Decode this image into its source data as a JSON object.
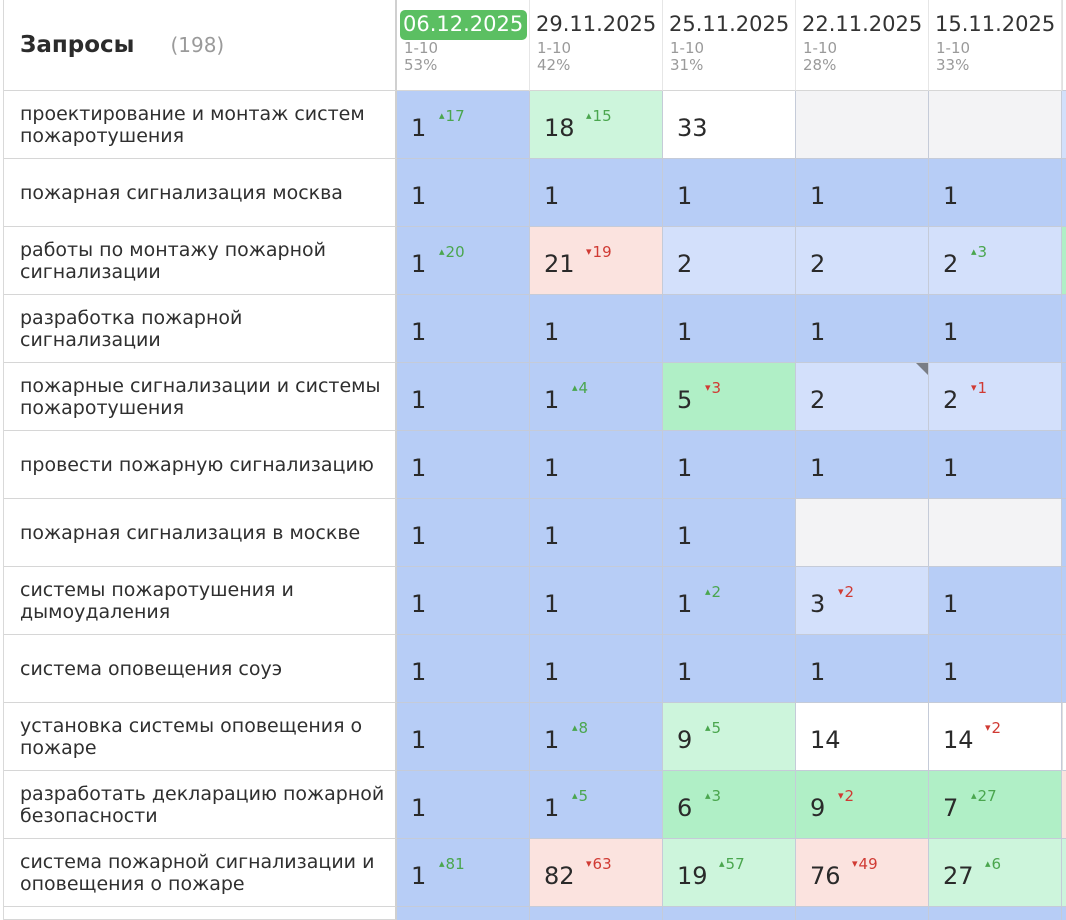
{
  "header": {
    "title": "Запросы",
    "count": "(198)",
    "dates": [
      {
        "date": "06.12.2025",
        "range": "1-10",
        "percent": "53%",
        "current": true
      },
      {
        "date": "29.11.2025",
        "range": "1-10",
        "percent": "42%",
        "current": false
      },
      {
        "date": "25.11.2025",
        "range": "1-10",
        "percent": "31%",
        "current": false
      },
      {
        "date": "22.11.2025",
        "range": "1-10",
        "percent": "28%",
        "current": false
      },
      {
        "date": "15.11.2025",
        "range": "1-10",
        "percent": "33%",
        "current": false
      }
    ]
  },
  "colors": {
    "current_date_badge": "#5bbf62",
    "top_position": "#b7cdf6",
    "near_top": "#d3e0fb",
    "light_green": "#cdf5dc",
    "green": "#b0efc6",
    "drop": "#fbe3df",
    "delta_up": "#4aa64e",
    "delta_down": "#d03a33"
  },
  "rows": [
    {
      "query": "проектирование и монтаж систем пожаротушения",
      "cells": [
        {
          "pos": "1",
          "delta": "17",
          "dir": "up",
          "color": "blue"
        },
        {
          "pos": "18",
          "delta": "15",
          "dir": "up",
          "color": "lgreen"
        },
        {
          "pos": "33",
          "delta": "",
          "dir": "",
          "color": "white"
        },
        {
          "pos": "",
          "delta": "",
          "dir": "",
          "color": "gray"
        },
        {
          "pos": "",
          "delta": "",
          "dir": "",
          "color": "gray"
        }
      ],
      "strip": "lblue"
    },
    {
      "query": "пожарная сигнализация москва",
      "cells": [
        {
          "pos": "1",
          "delta": "",
          "dir": "",
          "color": "blue"
        },
        {
          "pos": "1",
          "delta": "",
          "dir": "",
          "color": "blue"
        },
        {
          "pos": "1",
          "delta": "",
          "dir": "",
          "color": "blue"
        },
        {
          "pos": "1",
          "delta": "",
          "dir": "",
          "color": "blue"
        },
        {
          "pos": "1",
          "delta": "",
          "dir": "",
          "color": "blue"
        }
      ],
      "strip": "blue"
    },
    {
      "query": "работы по монтажу пожарной сигнализации",
      "cells": [
        {
          "pos": "1",
          "delta": "20",
          "dir": "up",
          "color": "blue"
        },
        {
          "pos": "21",
          "delta": "19",
          "dir": "down",
          "color": "pink"
        },
        {
          "pos": "2",
          "delta": "",
          "dir": "",
          "color": "lblue"
        },
        {
          "pos": "2",
          "delta": "",
          "dir": "",
          "color": "lblue"
        },
        {
          "pos": "2",
          "delta": "3",
          "dir": "up",
          "color": "lblue"
        }
      ],
      "strip": "green"
    },
    {
      "query": "разработка пожарной сигнализации",
      "cells": [
        {
          "pos": "1",
          "delta": "",
          "dir": "",
          "color": "blue"
        },
        {
          "pos": "1",
          "delta": "",
          "dir": "",
          "color": "blue"
        },
        {
          "pos": "1",
          "delta": "",
          "dir": "",
          "color": "blue"
        },
        {
          "pos": "1",
          "delta": "",
          "dir": "",
          "color": "blue"
        },
        {
          "pos": "1",
          "delta": "",
          "dir": "",
          "color": "blue"
        }
      ],
      "strip": "blue"
    },
    {
      "query": "пожарные сигнализации и системы пожаротушения",
      "cells": [
        {
          "pos": "1",
          "delta": "",
          "dir": "",
          "color": "blue"
        },
        {
          "pos": "1",
          "delta": "4",
          "dir": "up",
          "color": "blue"
        },
        {
          "pos": "5",
          "delta": "3",
          "dir": "down",
          "color": "green"
        },
        {
          "pos": "2",
          "delta": "",
          "dir": "",
          "color": "lblue",
          "marker": true
        },
        {
          "pos": "2",
          "delta": "1",
          "dir": "down",
          "color": "lblue"
        }
      ],
      "strip": "blue"
    },
    {
      "query": "провести пожарную сигнализацию",
      "cells": [
        {
          "pos": "1",
          "delta": "",
          "dir": "",
          "color": "blue"
        },
        {
          "pos": "1",
          "delta": "",
          "dir": "",
          "color": "blue"
        },
        {
          "pos": "1",
          "delta": "",
          "dir": "",
          "color": "blue"
        },
        {
          "pos": "1",
          "delta": "",
          "dir": "",
          "color": "blue"
        },
        {
          "pos": "1",
          "delta": "",
          "dir": "",
          "color": "blue"
        }
      ],
      "strip": "blue"
    },
    {
      "query": "пожарная сигнализация в москве",
      "cells": [
        {
          "pos": "1",
          "delta": "",
          "dir": "",
          "color": "blue"
        },
        {
          "pos": "1",
          "delta": "",
          "dir": "",
          "color": "blue"
        },
        {
          "pos": "1",
          "delta": "",
          "dir": "",
          "color": "blue"
        },
        {
          "pos": "",
          "delta": "",
          "dir": "",
          "color": "gray"
        },
        {
          "pos": "",
          "delta": "",
          "dir": "",
          "color": "gray"
        }
      ],
      "strip": "blue"
    },
    {
      "query": "системы пожаротушения и дымоудаления",
      "cells": [
        {
          "pos": "1",
          "delta": "",
          "dir": "",
          "color": "blue"
        },
        {
          "pos": "1",
          "delta": "",
          "dir": "",
          "color": "blue"
        },
        {
          "pos": "1",
          "delta": "2",
          "dir": "up",
          "color": "blue"
        },
        {
          "pos": "3",
          "delta": "2",
          "dir": "down",
          "color": "lblue"
        },
        {
          "pos": "1",
          "delta": "",
          "dir": "",
          "color": "blue"
        }
      ],
      "strip": "blue"
    },
    {
      "query": "система оповещения соуэ",
      "cells": [
        {
          "pos": "1",
          "delta": "",
          "dir": "",
          "color": "blue"
        },
        {
          "pos": "1",
          "delta": "",
          "dir": "",
          "color": "blue"
        },
        {
          "pos": "1",
          "delta": "",
          "dir": "",
          "color": "blue"
        },
        {
          "pos": "1",
          "delta": "",
          "dir": "",
          "color": "blue"
        },
        {
          "pos": "1",
          "delta": "",
          "dir": "",
          "color": "blue"
        }
      ],
      "strip": "blue"
    },
    {
      "query": "установка системы оповещения о пожаре",
      "cells": [
        {
          "pos": "1",
          "delta": "",
          "dir": "",
          "color": "blue"
        },
        {
          "pos": "1",
          "delta": "8",
          "dir": "up",
          "color": "blue"
        },
        {
          "pos": "9",
          "delta": "5",
          "dir": "up",
          "color": "lgreen"
        },
        {
          "pos": "14",
          "delta": "",
          "dir": "",
          "color": "white"
        },
        {
          "pos": "14",
          "delta": "2",
          "dir": "down",
          "color": "white"
        }
      ],
      "strip": "white"
    },
    {
      "query": "разработать декларацию пожарной безопасности",
      "cells": [
        {
          "pos": "1",
          "delta": "",
          "dir": "",
          "color": "blue"
        },
        {
          "pos": "1",
          "delta": "5",
          "dir": "up",
          "color": "blue"
        },
        {
          "pos": "6",
          "delta": "3",
          "dir": "up",
          "color": "green"
        },
        {
          "pos": "9",
          "delta": "2",
          "dir": "down",
          "color": "green"
        },
        {
          "pos": "7",
          "delta": "27",
          "dir": "up",
          "color": "green"
        }
      ],
      "strip": "pink"
    },
    {
      "query": "система пожарной сигнализации и оповещения о пожаре",
      "cells": [
        {
          "pos": "1",
          "delta": "81",
          "dir": "up",
          "color": "blue"
        },
        {
          "pos": "82",
          "delta": "63",
          "dir": "down",
          "color": "pink"
        },
        {
          "pos": "19",
          "delta": "57",
          "dir": "up",
          "color": "lgreen"
        },
        {
          "pos": "76",
          "delta": "49",
          "dir": "down",
          "color": "pink"
        },
        {
          "pos": "27",
          "delta": "6",
          "dir": "up",
          "color": "lgreen"
        }
      ],
      "strip": "lgreen"
    }
  ]
}
